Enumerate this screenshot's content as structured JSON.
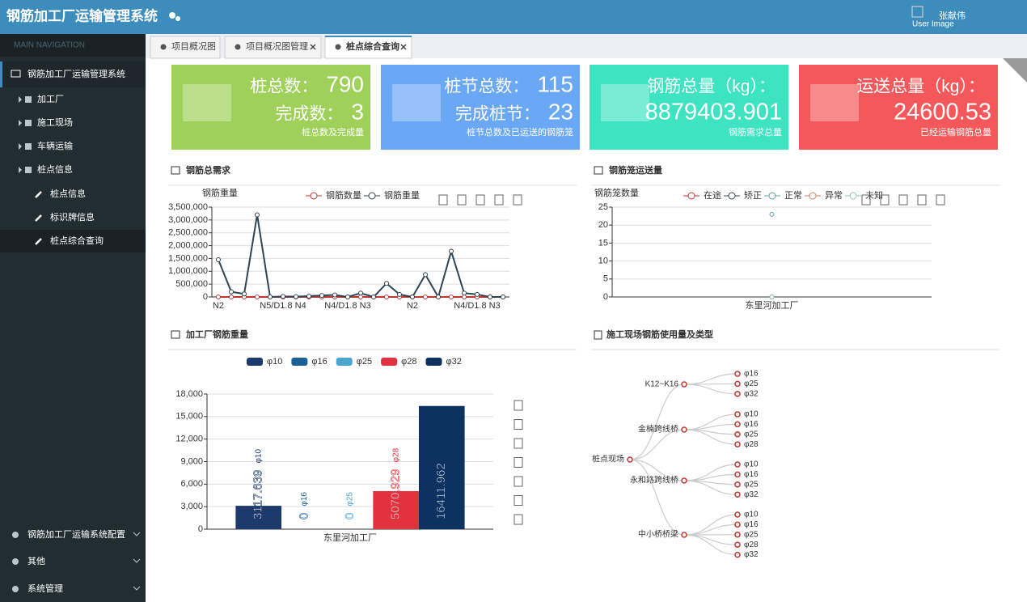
{
  "header": {
    "title": "钢筋加工厂运输管理系统",
    "user_image": "User Image",
    "user_name": "张献伟"
  },
  "sidebar": {
    "heading": "MAIN NAVIGATION",
    "system": "钢筋加工厂运输管理系统",
    "items": [
      "加工厂",
      "施工现场",
      "车辆运输",
      "桩点信息"
    ],
    "subitems": [
      "桩点信息",
      "标识牌信息",
      "桩点综合查询"
    ],
    "bottom": [
      "钢筋加工厂运输系统配置",
      "其他",
      "系统管理"
    ]
  },
  "tabs": [
    "项目概况图",
    "项目概况图管理",
    "桩点综合查询"
  ],
  "stats": [
    {
      "label1": "桩总数：",
      "value1": 790,
      "label2": "完成数：",
      "value2": 3,
      "caption": "桩总数及完成量",
      "color": "#9fd15a"
    },
    {
      "label1": "桩节总数：",
      "value1": 115,
      "label2": "完成桩节：",
      "value2": 23,
      "caption": "桩节总数及已运送的钢筋笼",
      "color": "#6aa8f5"
    },
    {
      "label1": "钢筋总量（kg）：",
      "value1": 8879403.901,
      "caption": "钢筋需求总量",
      "color": "#3ee4c2"
    },
    {
      "label1": "运送总量（kg）：",
      "value1": 24600.53,
      "caption": "已经运输钢筋总量",
      "color": "#f5585a"
    }
  ],
  "chart_data": [
    {
      "type": "line",
      "title": "钢筋总需求",
      "y_axis_label": "钢筋重量",
      "categories": [
        "N2",
        null,
        null,
        null,
        null,
        "N5/D1.8 N4",
        null,
        null,
        null,
        null,
        "N4/D1.8 N3",
        null,
        null,
        null,
        null,
        "N2",
        null,
        null,
        null,
        null,
        "N4/D1.8 N3",
        null,
        null
      ],
      "series": [
        {
          "name": "钢筋数量",
          "color": "#c23531",
          "values": [
            0,
            0,
            0,
            0,
            0,
            0,
            0,
            0,
            0,
            0,
            0,
            0,
            0,
            0,
            0,
            0,
            0,
            0,
            0,
            0,
            0,
            0,
            0
          ]
        },
        {
          "name": "钢筋重量",
          "color": "#2f4554",
          "values": [
            1450000,
            200000,
            120000,
            3200000,
            0,
            20000,
            10000,
            30000,
            60000,
            80000,
            0,
            150000,
            0,
            530000,
            100000,
            0,
            870000,
            0,
            1780000,
            150000,
            100000,
            0,
            0
          ]
        }
      ],
      "ylim": [
        0,
        3500000
      ],
      "yticks": [
        0,
        {
          "value": 500000,
          "label": "500,000"
        },
        {
          "value": 1000000,
          "label": "1,000,000"
        },
        {
          "value": 1500000,
          "label": "1,500,000"
        },
        {
          "value": 2000000,
          "label": "2,000,000"
        },
        {
          "value": 2500000,
          "label": "2,500,000"
        },
        {
          "value": 3000000,
          "label": "3,000,000"
        },
        {
          "value": 3500000,
          "label": "3,500,000"
        }
      ],
      "grid": true
    },
    {
      "type": "line",
      "title": "钢筋笼运送量",
      "y_axis_label": "钢筋笼数量",
      "categories": [
        "东里河加工厂"
      ],
      "series": [
        {
          "name": "在途",
          "color": "#c23531",
          "values": [
            0
          ]
        },
        {
          "name": "矫正",
          "color": "#2f4554",
          "values": [
            0
          ]
        },
        {
          "name": "正常",
          "color": "#61a0a8",
          "values": [
            23
          ]
        },
        {
          "name": "异常",
          "color": "#d48265",
          "values": [
            0
          ]
        },
        {
          "name": "未知",
          "color": "#91c7ae",
          "values": [
            0
          ]
        }
      ],
      "ylim": [
        0,
        25
      ],
      "yticks": [
        0,
        5,
        10,
        15,
        20,
        25
      ],
      "grid": true
    },
    {
      "type": "bar",
      "title": "加工厂钢筋重量",
      "categories": [
        "东里河加工厂"
      ],
      "series": [
        {
          "name": "φ10",
          "color": "#1c3a6b",
          "values": [
            3117.639
          ]
        },
        {
          "name": "φ16",
          "color": "#1b6197",
          "values": [
            0
          ]
        },
        {
          "name": "φ25",
          "color": "#4aa6d0",
          "values": [
            0
          ]
        },
        {
          "name": "φ28",
          "color": "#e2323f",
          "values": [
            5070.929
          ]
        },
        {
          "name": "φ32",
          "color": "#0d3262",
          "values": [
            16411.962
          ]
        }
      ],
      "ylim": [
        0,
        18000
      ],
      "yticks": [
        0,
        {
          "value": 3000,
          "label": "3,000"
        },
        {
          "value": 6000,
          "label": "6,000"
        },
        {
          "value": 9000,
          "label": "9,000"
        },
        {
          "value": 12000,
          "label": "12,000"
        },
        {
          "value": 15000,
          "label": "15,000"
        },
        {
          "value": 18000,
          "label": "18,000"
        }
      ],
      "grid": true
    }
  ],
  "tree": {
    "title": "施工现场钢筋使用量及类型",
    "root": "桩点现场",
    "children": [
      {
        "name": "K12~K16",
        "children": [
          "φ16",
          "φ25",
          "φ32"
        ]
      },
      {
        "name": "金楠跨线桥",
        "children": [
          "φ10",
          "φ16",
          "φ25",
          "φ28"
        ]
      },
      {
        "name": "永和路跨线桥",
        "children": [
          "φ10",
          "φ16",
          "φ25",
          "φ32"
        ]
      },
      {
        "name": "中小桥桥梁",
        "children": [
          "φ10",
          "φ16",
          "φ25",
          "φ28",
          "φ32"
        ]
      }
    ]
  }
}
